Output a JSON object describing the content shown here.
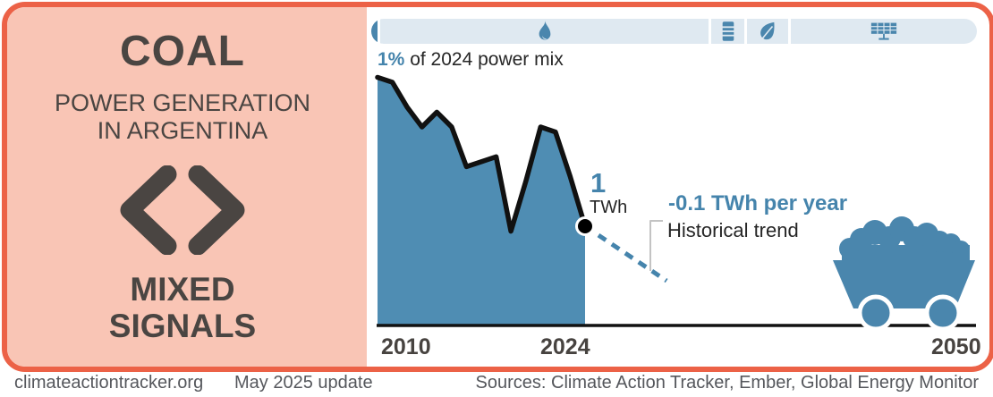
{
  "panel": {
    "title": "COAL",
    "subtitle_line1": "POWER GENERATION",
    "subtitle_line2": "IN ARGENTINA",
    "signal_line1": "MIXED",
    "signal_line2": "SIGNALS"
  },
  "power_mix_bar": {
    "segments": [
      {
        "name": "coal",
        "icon": "none",
        "width_pct": 1.0,
        "highlighted": true
      },
      {
        "name": "gas",
        "icon": "flame-icon",
        "width_pct": 53.9,
        "highlighted": false
      },
      {
        "name": "oil",
        "icon": "oil-barrel-icon",
        "width_pct": 5.3,
        "highlighted": false
      },
      {
        "name": "bioenergy",
        "icon": "leaf-icon",
        "width_pct": 6.8,
        "highlighted": false
      },
      {
        "name": "renewables",
        "icon": "solar-panel-icon",
        "width_pct": 30.5,
        "highlighted": false
      }
    ]
  },
  "chart": {
    "mix_share_value": "1%",
    "mix_share_text": " of 2024 power mix",
    "endpoint_value": "1",
    "endpoint_unit": "TWh",
    "trend_value": "-0.1 TWh per year",
    "trend_label": "Historical trend",
    "x_ticks": [
      "2010",
      "2024",
      "2050"
    ]
  },
  "chart_data": {
    "type": "area",
    "title": "Coal power generation in Argentina",
    "unit": "TWh",
    "x": [
      2010,
      2011,
      2012,
      2013,
      2014,
      2015,
      2016,
      2017,
      2018,
      2019,
      2020,
      2021,
      2022,
      2023,
      2024
    ],
    "values": [
      2.5,
      2.45,
      2.2,
      2.0,
      2.15,
      2.0,
      1.6,
      1.65,
      1.7,
      0.95,
      1.45,
      2.0,
      1.95,
      1.5,
      1.0
    ],
    "x_axis_range": [
      2010,
      2050
    ],
    "endpoint": {
      "year": 2024,
      "value": 1,
      "label": "1 TWh",
      "share_of_power_mix": "1%"
    },
    "trend": {
      "rate_per_year": -0.1,
      "unit": "TWh",
      "label": "Historical trend",
      "projection_end_year": 2029.5
    },
    "legend": "none",
    "grid": false
  },
  "footer": {
    "site": "climateactiontracker.org",
    "update": "May 2025 update",
    "sources": "Sources: Climate Action Tracker, Ember, Global Energy Monitor"
  },
  "colors": {
    "border_orange": "#ec6247",
    "panel_salmon": "#f9c5b5",
    "area_blue": "#4f8db3",
    "accent_blue": "#4584ac",
    "icon_blue": "#4a86ad",
    "bar_light_blue": "#dfe9f1",
    "dark_text": "#4a4542",
    "line_black": "#111111"
  }
}
